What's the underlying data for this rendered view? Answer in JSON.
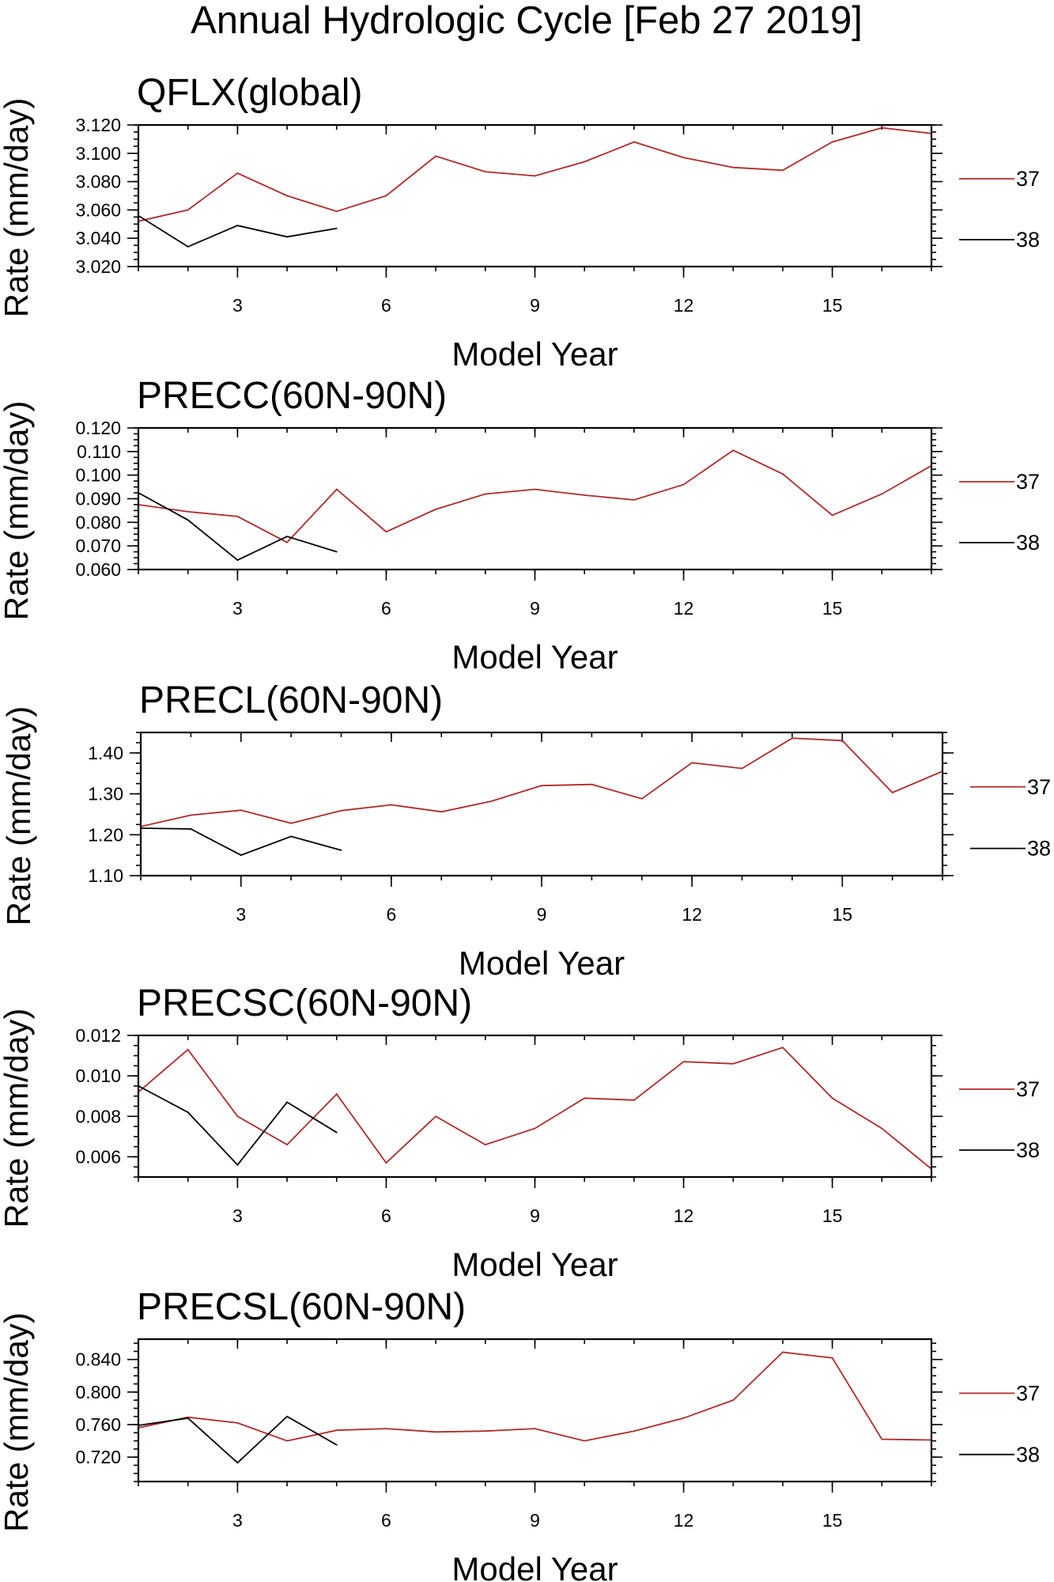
{
  "main_title": "Annual Hydrologic Cycle [Feb 27 2019]",
  "colors": {
    "run37": "#b02a2a",
    "run38": "#000000",
    "frame": "#000000"
  },
  "chart_data": [
    {
      "type": "line",
      "title": "QFLX(global)",
      "xlabel": "Model Year",
      "ylabel": "Rate (mm/day)",
      "xlim": [
        1,
        17
      ],
      "ylim": [
        3.02,
        3.12
      ],
      "yticks": [
        3.02,
        3.04,
        3.06,
        3.08,
        3.1,
        3.12
      ],
      "ytick_labels": [
        "3.020",
        "3.040",
        "3.060",
        "3.080",
        "3.100",
        "3.120"
      ],
      "xticks": [
        3,
        6,
        9,
        12,
        15
      ],
      "xtick_labels": [
        "3",
        "6",
        "9",
        "12",
        "15"
      ],
      "series": [
        {
          "name": "37",
          "color": "#b02a2a",
          "x": [
            1,
            2,
            3,
            4,
            5,
            6,
            7,
            8,
            9,
            10,
            11,
            12,
            13,
            14,
            15,
            16,
            17
          ],
          "values": [
            3.052,
            3.06,
            3.086,
            3.07,
            3.059,
            3.07,
            3.098,
            3.087,
            3.084,
            3.094,
            3.108,
            3.097,
            3.09,
            3.088,
            3.108,
            3.118,
            3.114
          ]
        },
        {
          "name": "38",
          "color": "#000000",
          "x": [
            1,
            2,
            3,
            4,
            5
          ],
          "values": [
            3.056,
            3.034,
            3.049,
            3.041,
            3.047
          ]
        }
      ]
    },
    {
      "type": "line",
      "title": "PRECC(60N-90N)",
      "xlabel": "Model Year",
      "ylabel": "Rate (mm/day)",
      "xlim": [
        1,
        17
      ],
      "ylim": [
        0.06,
        0.12
      ],
      "yticks": [
        0.06,
        0.07,
        0.08,
        0.09,
        0.1,
        0.11,
        0.12
      ],
      "ytick_labels": [
        "0.060",
        "0.070",
        "0.080",
        "0.090",
        "0.100",
        "0.110",
        "0.120"
      ],
      "xticks": [
        3,
        6,
        9,
        12,
        15
      ],
      "xtick_labels": [
        "3",
        "6",
        "9",
        "12",
        "15"
      ],
      "series": [
        {
          "name": "37",
          "color": "#b02a2a",
          "x": [
            1,
            2,
            3,
            4,
            5,
            6,
            7,
            8,
            9,
            10,
            11,
            12,
            13,
            14,
            15,
            16,
            17
          ],
          "values": [
            0.0875,
            0.0845,
            0.0825,
            0.0715,
            0.094,
            0.076,
            0.0855,
            0.092,
            0.094,
            0.0915,
            0.0895,
            0.096,
            0.1105,
            0.1005,
            0.083,
            0.092,
            0.104
          ]
        },
        {
          "name": "38",
          "color": "#000000",
          "x": [
            1,
            2,
            3,
            4,
            5
          ],
          "values": [
            0.0925,
            0.081,
            0.064,
            0.074,
            0.0675
          ]
        }
      ]
    },
    {
      "type": "line",
      "title": "PRECL(60N-90N)",
      "xlabel": "Model Year",
      "ylabel": "Rate (mm/day)",
      "xlim": [
        1,
        17
      ],
      "ylim": [
        1.1,
        1.45
      ],
      "yticks": [
        1.1,
        1.2,
        1.3,
        1.4
      ],
      "ytick_labels": [
        "1.10",
        "1.20",
        "1.30",
        "1.40"
      ],
      "xticks": [
        3,
        6,
        9,
        12,
        15
      ],
      "xtick_labels": [
        "3",
        "6",
        "9",
        "12",
        "15"
      ],
      "series": [
        {
          "name": "37",
          "color": "#b02a2a",
          "x": [
            1,
            2,
            3,
            4,
            5,
            6,
            7,
            8,
            9,
            10,
            11,
            12,
            13,
            14,
            15,
            16,
            17
          ],
          "values": [
            1.22,
            1.248,
            1.26,
            1.228,
            1.259,
            1.273,
            1.256,
            1.282,
            1.32,
            1.323,
            1.288,
            1.376,
            1.362,
            1.436,
            1.43,
            1.303,
            1.355
          ]
        },
        {
          "name": "38",
          "color": "#000000",
          "x": [
            1,
            2,
            3,
            4,
            5
          ],
          "values": [
            1.216,
            1.214,
            1.15,
            1.196,
            1.162
          ]
        }
      ]
    },
    {
      "type": "line",
      "title": "PRECSC(60N-90N)",
      "xlabel": "Model Year",
      "ylabel": "Rate (mm/day)",
      "xlim": [
        1,
        17
      ],
      "ylim": [
        0.005,
        0.012
      ],
      "yticks": [
        0.006,
        0.008,
        0.01,
        0.012
      ],
      "ytick_labels": [
        "0.006",
        "0.008",
        "0.010",
        "0.012"
      ],
      "xticks": [
        3,
        6,
        9,
        12,
        15
      ],
      "xtick_labels": [
        "3",
        "6",
        "9",
        "12",
        "15"
      ],
      "series": [
        {
          "name": "37",
          "color": "#b02a2a",
          "x": [
            1,
            2,
            3,
            4,
            5,
            6,
            7,
            8,
            9,
            10,
            11,
            12,
            13,
            14,
            15,
            16,
            17
          ],
          "values": [
            0.0092,
            0.0113,
            0.008,
            0.0066,
            0.0091,
            0.0057,
            0.008,
            0.0066,
            0.0074,
            0.0089,
            0.0088,
            0.0107,
            0.0106,
            0.0114,
            0.0089,
            0.0074,
            0.0054
          ]
        },
        {
          "name": "38",
          "color": "#000000",
          "x": [
            1,
            2,
            3,
            4,
            5
          ],
          "values": [
            0.0095,
            0.0082,
            0.0056,
            0.0087,
            0.0072
          ]
        }
      ]
    },
    {
      "type": "line",
      "title": "PRECSL(60N-90N)",
      "xlabel": "Model Year",
      "ylabel": "Rate (mm/day)",
      "xlim": [
        1,
        17
      ],
      "ylim": [
        0.69,
        0.865
      ],
      "yticks": [
        0.72,
        0.76,
        0.8,
        0.84
      ],
      "ytick_labels": [
        "0.720",
        "0.760",
        "0.800",
        "0.840"
      ],
      "xticks": [
        3,
        6,
        9,
        12,
        15
      ],
      "xtick_labels": [
        "3",
        "6",
        "9",
        "12",
        "15"
      ],
      "series": [
        {
          "name": "37",
          "color": "#b02a2a",
          "x": [
            1,
            2,
            3,
            4,
            5,
            6,
            7,
            8,
            9,
            10,
            11,
            12,
            13,
            14,
            15,
            16,
            17
          ],
          "values": [
            0.756,
            0.769,
            0.762,
            0.74,
            0.753,
            0.755,
            0.751,
            0.752,
            0.755,
            0.74,
            0.752,
            0.768,
            0.79,
            0.849,
            0.842,
            0.742,
            0.741
          ]
        },
        {
          "name": "38",
          "color": "#000000",
          "x": [
            1,
            2,
            3,
            4,
            5
          ],
          "values": [
            0.759,
            0.768,
            0.713,
            0.77,
            0.735
          ]
        }
      ]
    }
  ]
}
